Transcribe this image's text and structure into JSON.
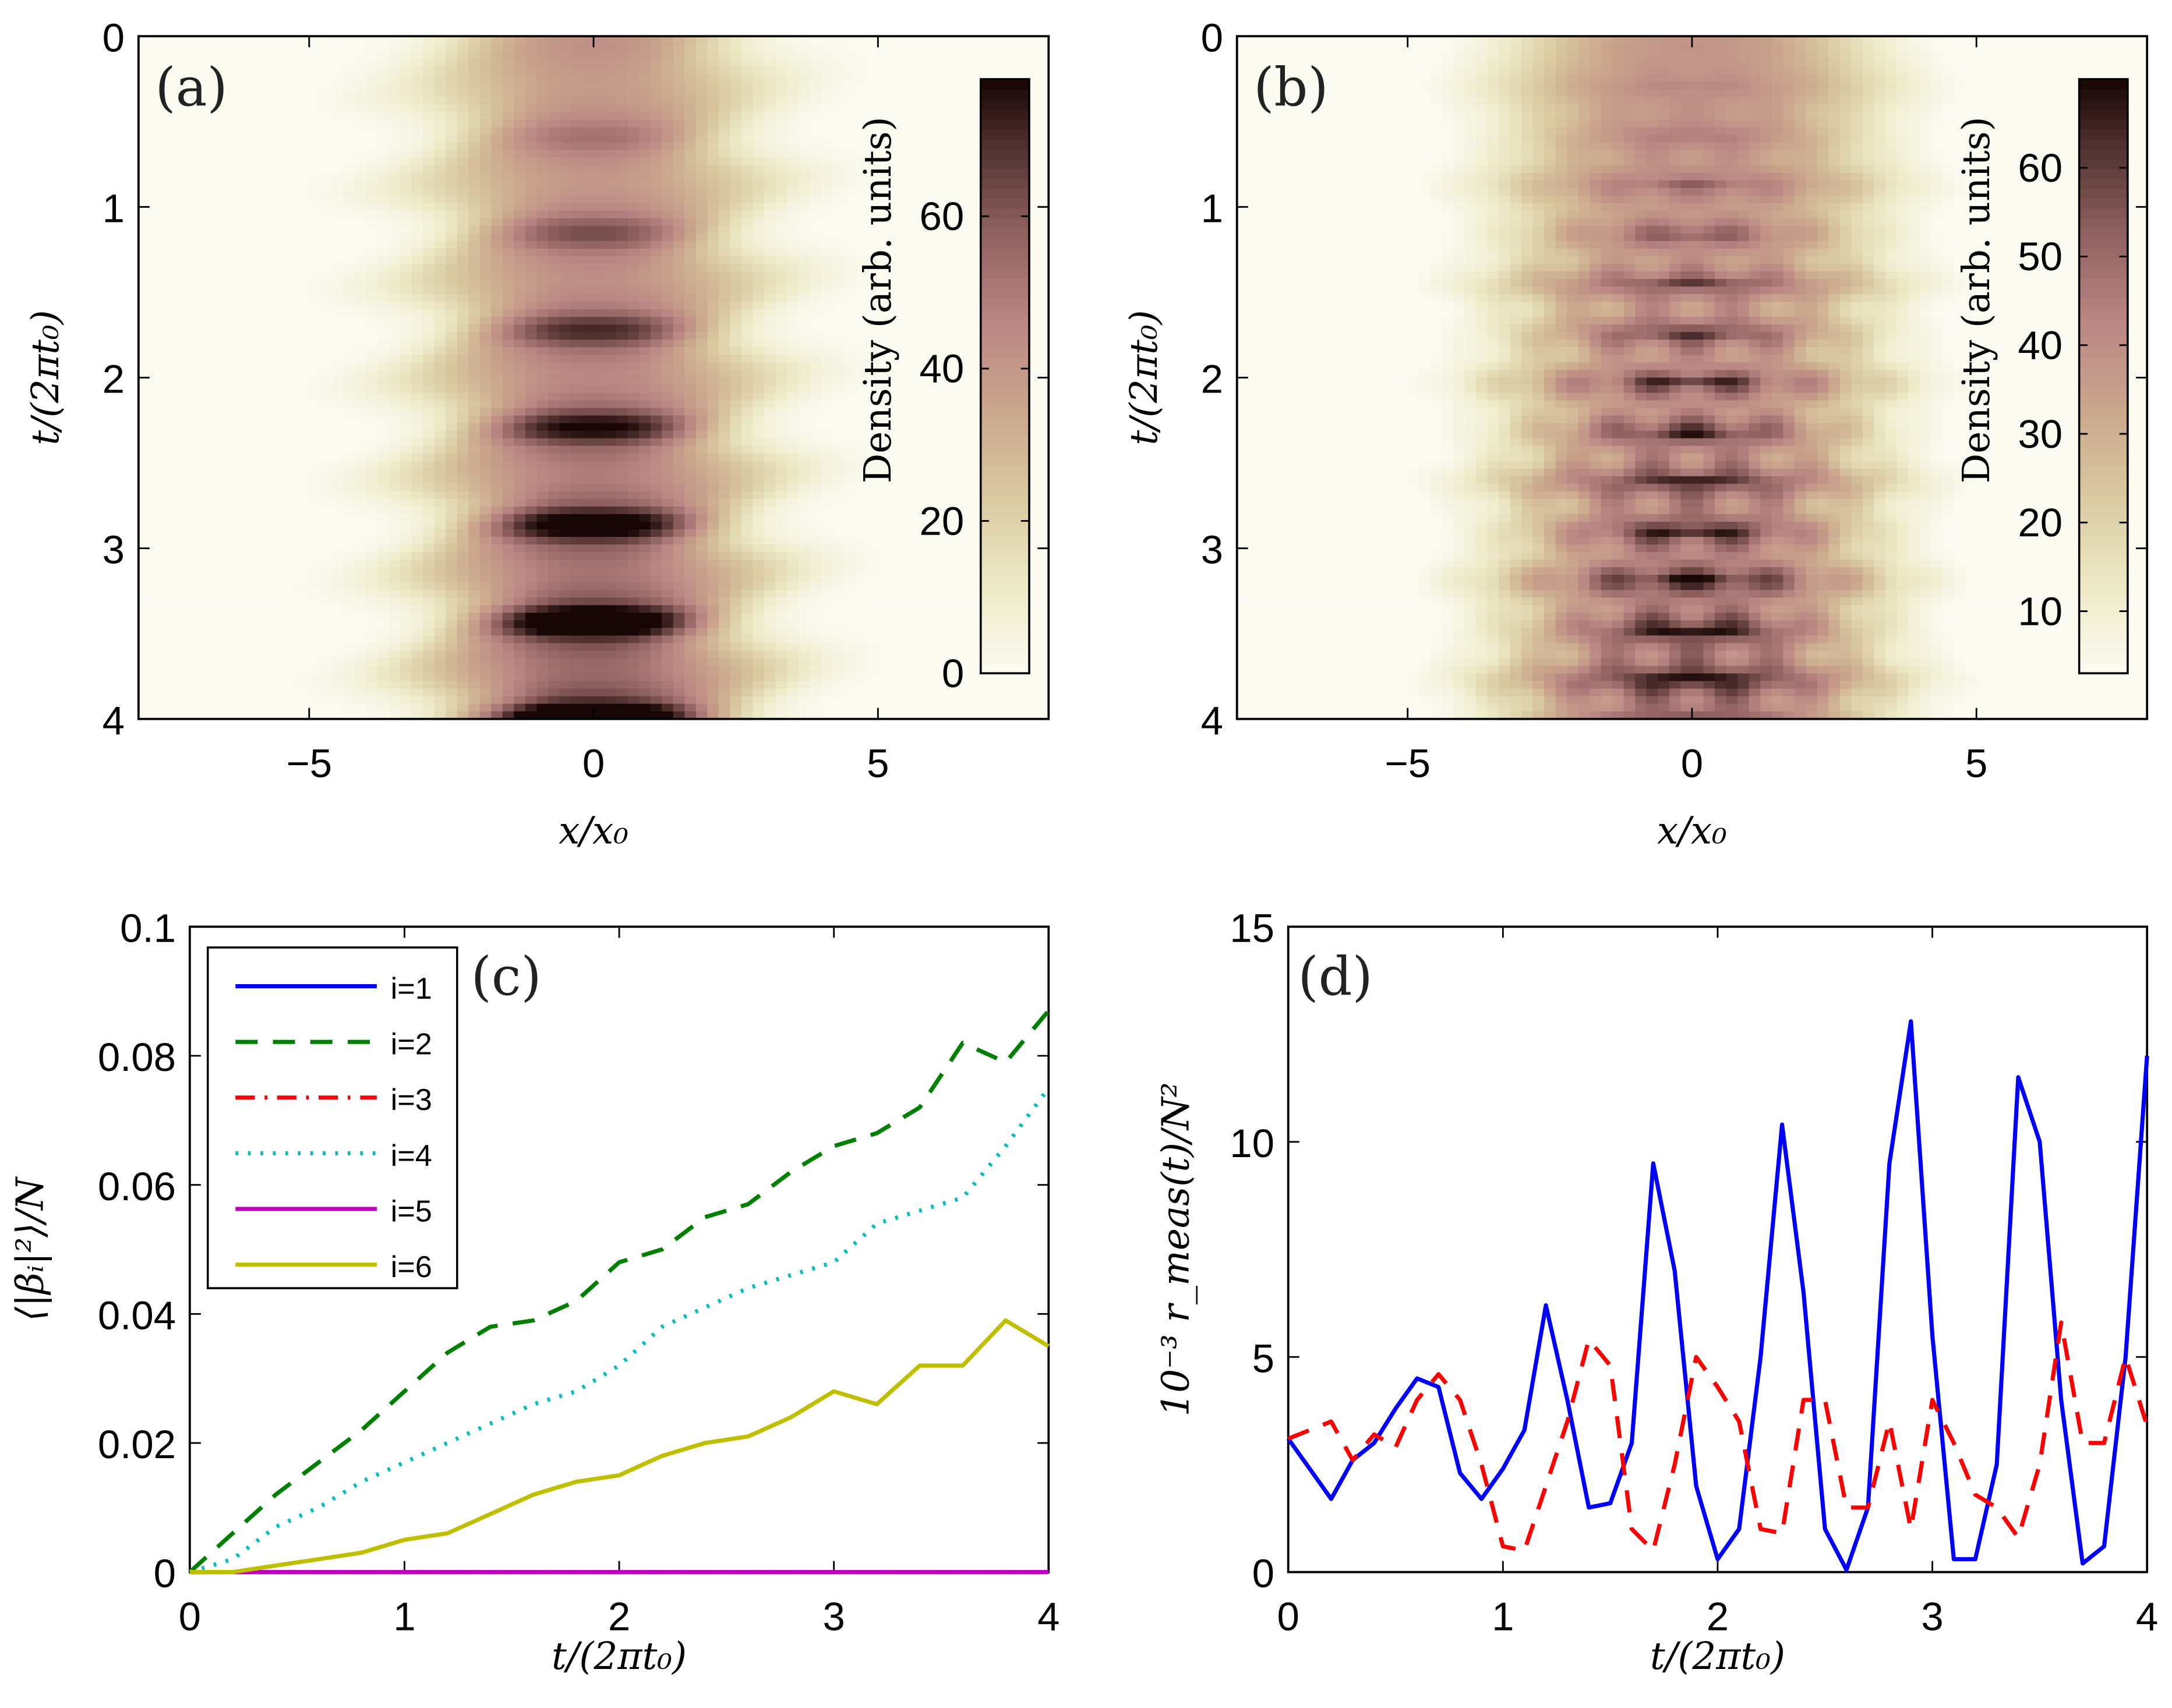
{
  "chart_data": [
    {
      "panel": "(a)",
      "type": "heatmap",
      "xlabel": "x/x₀",
      "ylabel": "t/(2πt₀)",
      "xlim": [
        -8,
        8
      ],
      "ylim": [
        0,
        4
      ],
      "xticks": [
        "−5",
        "0",
        "5"
      ],
      "xtick_values": [
        -5,
        0,
        5
      ],
      "yticks": [
        "0",
        "1",
        "2",
        "3",
        "4"
      ],
      "ytick_values": [
        0,
        1,
        2,
        3,
        4
      ],
      "colorbar": {
        "label": "Density (arb. units)",
        "range": [
          0,
          78
        ],
        "ticks": [
          "0",
          "20",
          "40",
          "60"
        ],
        "tick_values": [
          0,
          20,
          40,
          60
        ]
      }
    },
    {
      "panel": "(b)",
      "type": "heatmap",
      "xlabel": "x/x₀",
      "ylabel": "t/(2πt₀)",
      "xlim": [
        -8,
        8
      ],
      "ylim": [
        0,
        4
      ],
      "xticks": [
        "−5",
        "0",
        "5"
      ],
      "xtick_values": [
        -5,
        0,
        5
      ],
      "yticks": [
        "0",
        "1",
        "2",
        "3",
        "4"
      ],
      "ytick_values": [
        0,
        1,
        2,
        3,
        4
      ],
      "colorbar": {
        "label": "Density (arb. units)",
        "range": [
          3,
          70
        ],
        "ticks": [
          "10",
          "20",
          "30",
          "40",
          "50",
          "60"
        ],
        "tick_values": [
          10,
          20,
          30,
          40,
          50,
          60
        ]
      }
    },
    {
      "panel": "(c)",
      "type": "line",
      "xlabel": "t/(2πt₀)",
      "ylabel": "⟨|βᵢ|²⟩/N",
      "xlim": [
        0,
        4
      ],
      "ylim": [
        0,
        0.1
      ],
      "xticks": [
        "0",
        "1",
        "2",
        "3",
        "4"
      ],
      "xtick_values": [
        0,
        1,
        2,
        3,
        4
      ],
      "yticks": [
        "0",
        "0.02",
        "0.04",
        "0.06",
        "0.08",
        "0.1"
      ],
      "ytick_values": [
        0,
        0.02,
        0.04,
        0.06,
        0.08,
        0.1
      ],
      "legend_position": "top-left",
      "x": [
        0,
        0.2,
        0.4,
        0.6,
        0.8,
        1.0,
        1.2,
        1.4,
        1.6,
        1.8,
        2.0,
        2.2,
        2.4,
        2.6,
        2.8,
        3.0,
        3.2,
        3.4,
        3.6,
        3.8,
        4.0
      ],
      "series": [
        {
          "name": "i=1",
          "color": "#0000ff",
          "style": "solid",
          "values": [
            0,
            0,
            0,
            0,
            0,
            0,
            0,
            0,
            0,
            0,
            0,
            0,
            0,
            0,
            0,
            0,
            0,
            0,
            0,
            0,
            0
          ]
        },
        {
          "name": "i=2",
          "color": "#008000",
          "style": "dashed",
          "values": [
            0,
            0.006,
            0.012,
            0.017,
            0.022,
            0.028,
            0.034,
            0.038,
            0.039,
            0.042,
            0.048,
            0.05,
            0.055,
            0.057,
            0.062,
            0.066,
            0.068,
            0.072,
            0.082,
            0.079,
            0.087
          ]
        },
        {
          "name": "i=3",
          "color": "#ff0000",
          "style": "dashdot",
          "values": [
            0,
            0,
            0,
            0,
            0,
            0,
            0,
            0,
            0,
            0,
            0,
            0,
            0,
            0,
            0,
            0,
            0,
            0,
            0,
            0,
            0
          ]
        },
        {
          "name": "i=4",
          "color": "#00bfbf",
          "style": "dotted",
          "values": [
            0,
            0.002,
            0.007,
            0.01,
            0.014,
            0.017,
            0.02,
            0.023,
            0.026,
            0.028,
            0.032,
            0.038,
            0.041,
            0.044,
            0.046,
            0.048,
            0.054,
            0.056,
            0.058,
            0.066,
            0.075
          ]
        },
        {
          "name": "i=5",
          "color": "#bf00bf",
          "style": "solid",
          "values": [
            0,
            0,
            0,
            0,
            0,
            0,
            0,
            0,
            0,
            0,
            0,
            0,
            0,
            0,
            0,
            0,
            0,
            0,
            0,
            0,
            0
          ]
        },
        {
          "name": "i=6",
          "color": "#bfbf00",
          "style": "solid",
          "values": [
            0,
            0,
            0.001,
            0.002,
            0.003,
            0.005,
            0.006,
            0.009,
            0.012,
            0.014,
            0.015,
            0.018,
            0.02,
            0.021,
            0.024,
            0.028,
            0.026,
            0.032,
            0.032,
            0.039,
            0.035
          ]
        }
      ]
    },
    {
      "panel": "(d)",
      "type": "line",
      "xlabel": "t/(2πt₀)",
      "ylabel": "10⁻³ r_meas(t)/N²",
      "xlim": [
        0,
        4
      ],
      "ylim": [
        0,
        15
      ],
      "xticks": [
        "0",
        "1",
        "2",
        "3",
        "4"
      ],
      "xtick_values": [
        0,
        1,
        2,
        3,
        4
      ],
      "yticks": [
        "0",
        "5",
        "10",
        "15"
      ],
      "ytick_values": [
        0,
        5,
        10,
        15
      ],
      "x": [
        0,
        0.1,
        0.2,
        0.3,
        0.4,
        0.5,
        0.6,
        0.7,
        0.8,
        0.9,
        1.0,
        1.1,
        1.2,
        1.3,
        1.4,
        1.5,
        1.6,
        1.7,
        1.8,
        1.9,
        2.0,
        2.1,
        2.2,
        2.3,
        2.4,
        2.5,
        2.6,
        2.7,
        2.8,
        2.9,
        3.0,
        3.1,
        3.2,
        3.3,
        3.4,
        3.5,
        3.6,
        3.7,
        3.8,
        3.9,
        4.0
      ],
      "series": [
        {
          "name": "solid",
          "color": "#0000ff",
          "style": "solid",
          "values": [
            3.1,
            2.4,
            1.7,
            2.6,
            3.0,
            3.8,
            4.5,
            4.3,
            2.3,
            1.7,
            2.4,
            3.3,
            6.2,
            4.0,
            1.5,
            1.6,
            3.0,
            9.5,
            7.0,
            2.0,
            0.3,
            1.0,
            5.0,
            10.4,
            6.5,
            1.0,
            0.05,
            1.5,
            9.5,
            12.8,
            5.5,
            0.3,
            0.3,
            2.5,
            11.5,
            10.0,
            4.0,
            0.2,
            0.6,
            5.0,
            12.0
          ]
        },
        {
          "name": "dashed",
          "color": "#ff0000",
          "style": "dashed",
          "values": [
            3.1,
            3.3,
            3.5,
            2.6,
            3.2,
            2.9,
            4.0,
            4.6,
            4.0,
            2.5,
            0.6,
            0.5,
            2.0,
            3.5,
            5.4,
            4.8,
            1.0,
            0.5,
            2.5,
            5.0,
            4.3,
            3.5,
            1.0,
            0.9,
            4.0,
            4.0,
            1.5,
            1.5,
            3.5,
            1.0,
            4.0,
            3.0,
            1.8,
            1.5,
            0.8,
            2.5,
            5.8,
            3.0,
            3.0,
            5.0,
            3.4
          ]
        }
      ]
    }
  ]
}
